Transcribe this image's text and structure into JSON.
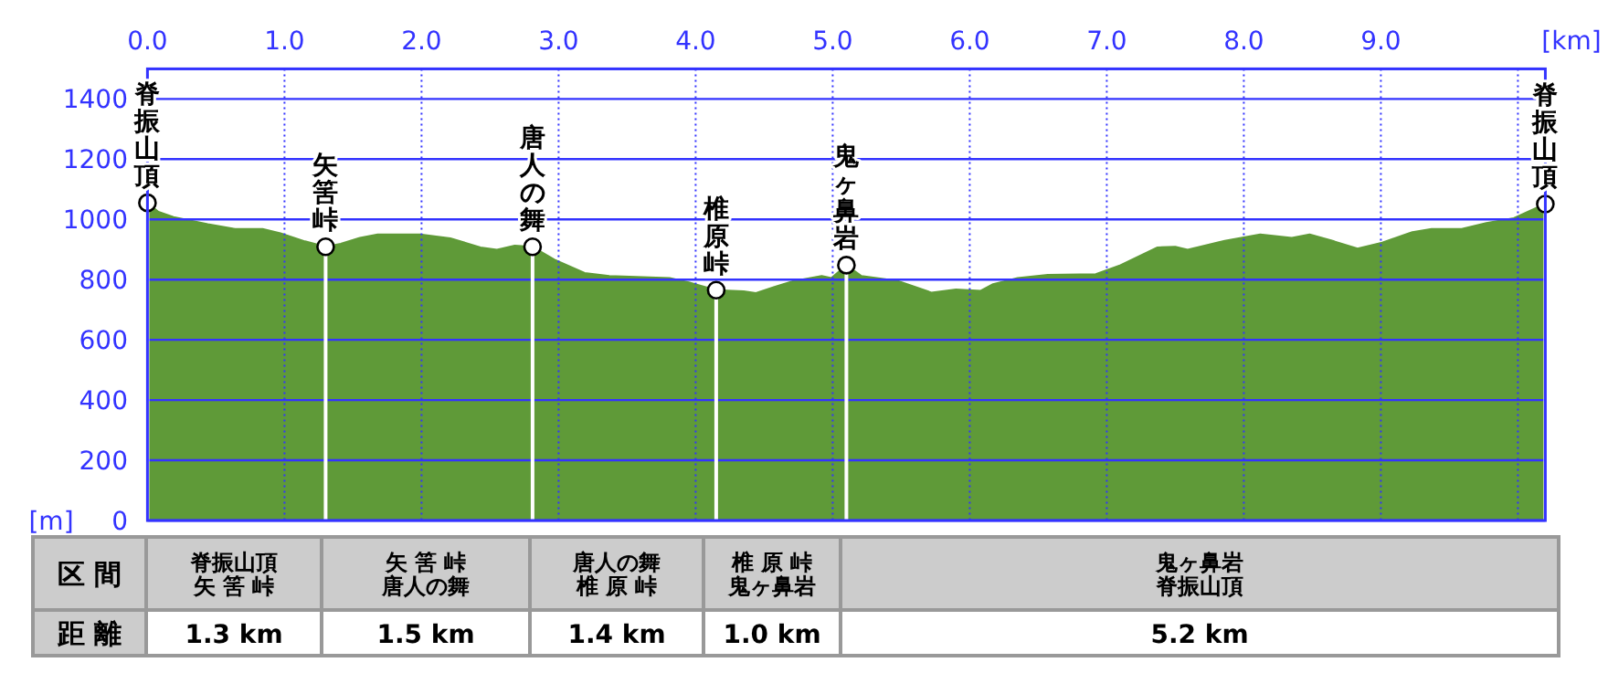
{
  "chart_data": {
    "type": "area",
    "xlabel": "[km]",
    "ylabel": "[m]",
    "xlim": [
      0,
      10.2
    ],
    "xticks": [
      {
        "value": 0,
        "label": "0.0"
      },
      {
        "value": 1,
        "label": "1.0"
      },
      {
        "value": 2,
        "label": "2.0"
      },
      {
        "value": 3,
        "label": "3.0"
      },
      {
        "value": 4,
        "label": "4.0"
      },
      {
        "value": 5,
        "label": "5.0"
      },
      {
        "value": 6,
        "label": "6.0"
      },
      {
        "value": 7,
        "label": "7.0"
      },
      {
        "value": 8,
        "label": "8.0"
      },
      {
        "value": 9,
        "label": "9.0"
      },
      {
        "value": 10,
        "label": null
      }
    ],
    "ylim": [
      0,
      1500
    ],
    "yticks": [
      0,
      200,
      400,
      600,
      800,
      1000,
      1200,
      1400,
      {
        "value": 1500,
        "label": null
      }
    ],
    "grid": true,
    "series": [
      {
        "color": "#5f9a38",
        "x": [
          0,
          0.08,
          0.19,
          0.44,
          0.64,
          0.84,
          0.97,
          1.15,
          1.3,
          1.41,
          1.55,
          1.68,
          1.99,
          2.21,
          2.43,
          2.55,
          2.68,
          2.81,
          2.97,
          3.19,
          3.37,
          3.81,
          3.95,
          4.15,
          4.35,
          4.44,
          4.57,
          4.71,
          4.92,
          4.99,
          5.1,
          5.21,
          5.48,
          5.72,
          5.9,
          6.08,
          6.17,
          6.35,
          6.57,
          6.92,
          7.1,
          7.37,
          7.5,
          7.59,
          7.86,
          8.12,
          8.35,
          8.48,
          8.66,
          8.83,
          9.01,
          9.23,
          9.37,
          9.59,
          9.77,
          9.97,
          10.12,
          10.2
        ],
        "values": [
          1055,
          1025,
          1008,
          984,
          968,
          968,
          954,
          927,
          909,
          919,
          939,
          950,
          950,
          937,
          907,
          899,
          913,
          909,
          866,
          822,
          812,
          805,
          791,
          765,
          761,
          755,
          775,
          795,
          812,
          805,
          848,
          812,
          795,
          757,
          767,
          763,
          785,
          805,
          816,
          818,
          848,
          907,
          909,
          899,
          929,
          950,
          939,
          950,
          927,
          903,
          923,
          958,
          968,
          968,
          988,
          1004,
          1035,
          1051
        ]
      },
      {
        "type": "lollipop",
        "color": "#ffffff",
        "marker": "circle",
        "x": [
          0,
          1.3,
          2.81,
          4.15,
          5.1,
          10.2
        ],
        "values": [
          1055,
          909,
          909,
          765,
          848,
          1051
        ]
      }
    ],
    "annotations": [
      {
        "text": "脊振山頂",
        "x": 0,
        "y": 1055
      },
      {
        "text": "矢筈峠",
        "x": 1.3,
        "y": 909
      },
      {
        "text": "唐人の舞",
        "x": 2.81,
        "y": 909
      },
      {
        "text": "椎原峠",
        "x": 4.15,
        "y": 765
      },
      {
        "text": "鬼ヶ鼻岩",
        "x": 5.1,
        "y": 848
      },
      {
        "text": "脊振山頂",
        "x": 10.2,
        "y": 1051
      },
      "区 間",
      "脊振山頂",
      "矢 筈 峠",
      "矢 筈 峠",
      "唐人の舞",
      "唐人の舞",
      "椎 原 峠",
      "椎 原 峠",
      "鬼ヶ鼻岩",
      "鬼ヶ鼻岩",
      "脊振山頂",
      "距 離",
      "1.3 km",
      "1.5 km",
      "1.4 km",
      "1.0 km",
      "5.2 km"
    ]
  }
}
